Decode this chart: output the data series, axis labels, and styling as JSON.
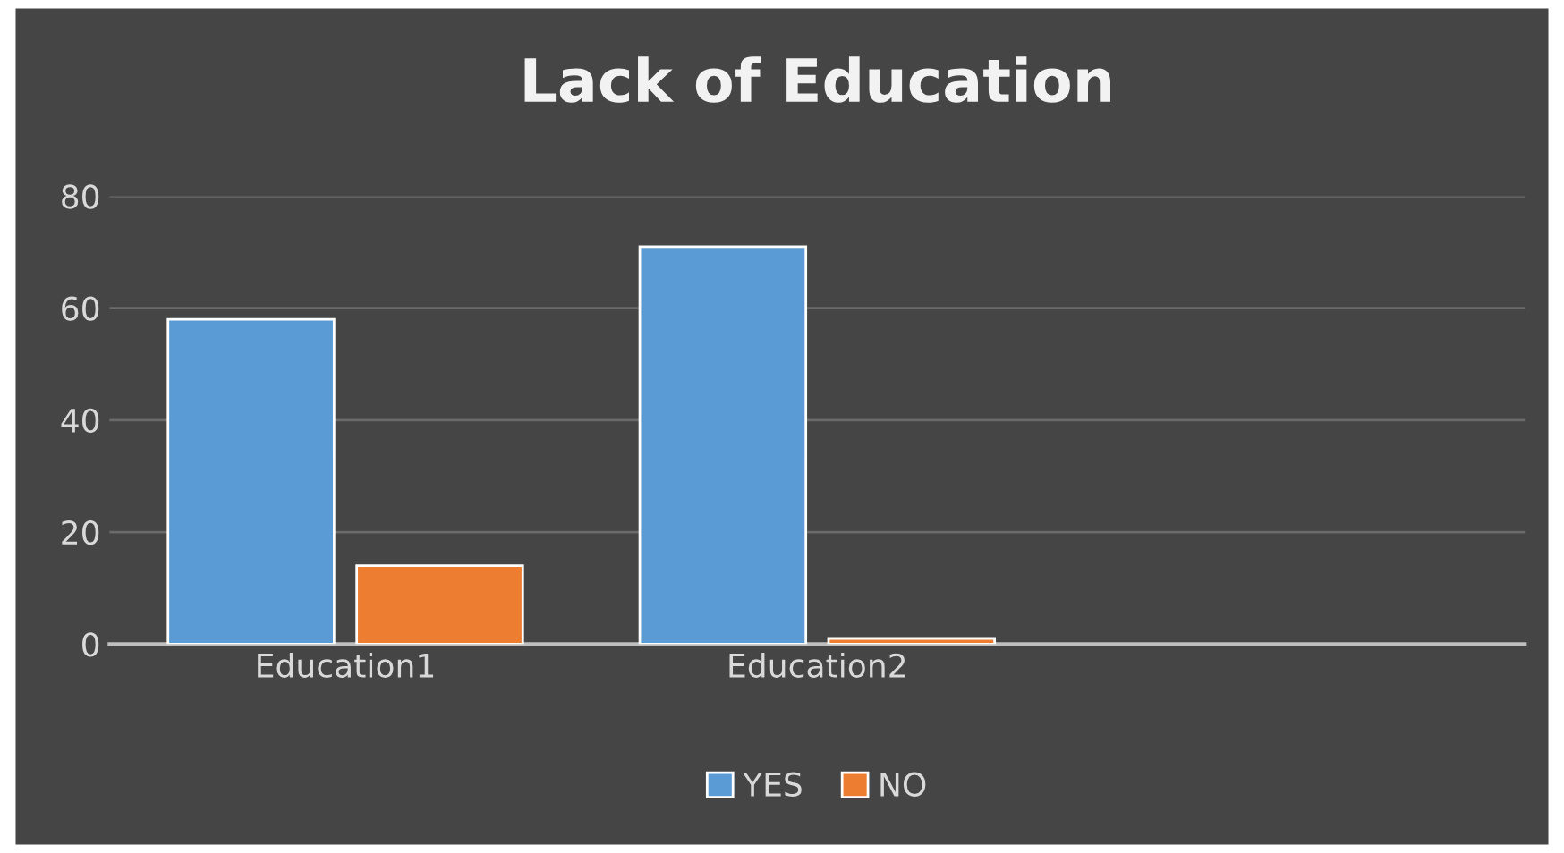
{
  "chart_data": {
    "type": "bar",
    "title": "Lack of Education",
    "categories": [
      "Education1",
      "Education2",
      null
    ],
    "series": [
      {
        "name": "YES",
        "color": "#5b9bd5",
        "values": [
          58,
          71,
          null
        ]
      },
      {
        "name": "NO",
        "color": "#ed7d31",
        "values": [
          14,
          1,
          null
        ]
      }
    ],
    "ylim": [
      0,
      80
    ],
    "yticks": [
      0,
      20,
      40,
      60,
      80
    ],
    "grid": "y",
    "legend": "bottom"
  }
}
